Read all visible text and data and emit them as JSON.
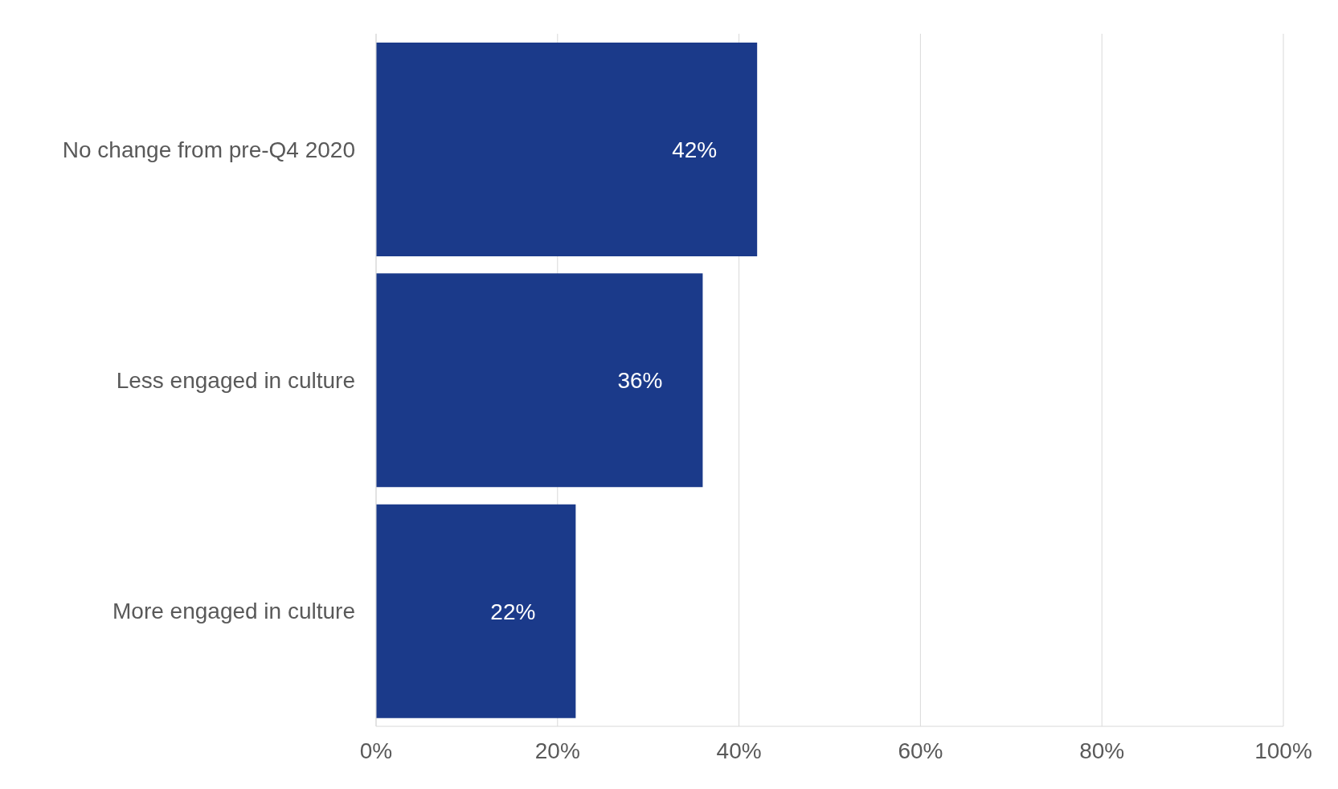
{
  "chart_data": {
    "type": "bar",
    "orientation": "horizontal",
    "categories": [
      "No change from pre-Q4 2020",
      "Less engaged in culture",
      "More engaged in culture"
    ],
    "values": [
      42,
      36,
      22
    ],
    "color": "#1b3a8a",
    "value_labels": [
      "42%",
      "36%",
      "22%"
    ],
    "xlim": [
      0,
      100
    ],
    "xticks": [
      {
        "value": 0,
        "label": "0%"
      },
      {
        "value": 20,
        "label": "20%"
      },
      {
        "value": 40,
        "label": "40%"
      },
      {
        "value": 60,
        "label": "60%"
      },
      {
        "value": 80,
        "label": "80%"
      },
      {
        "value": 100,
        "label": "100%"
      }
    ],
    "grid": "x"
  }
}
